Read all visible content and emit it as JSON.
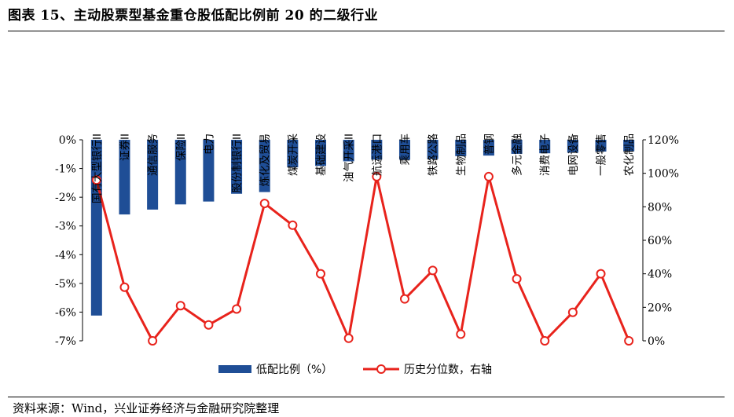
{
  "title": "图表 15、主动股票型基金重仓股低配比例前 20 的二级行业",
  "source": "资料来源：Wind，兴业证券经济与金融研究院整理",
  "chart_data": {
    "type": "bar+line",
    "categories": [
      "国有大型银行II",
      "证券II",
      "通信服务",
      "保险II",
      "电力",
      "股份制银行II",
      "炼化及贸易",
      "煤炭开采",
      "基础建设",
      "油气开采II",
      "航运港口",
      "乘用车",
      "铁路公路",
      "生物制品",
      "普钢",
      "多元金融",
      "消费电子",
      "电网设备",
      "一般零售",
      "农化制品"
    ],
    "series": [
      {
        "name": "低配比例（%）",
        "type": "bar",
        "axis": "left",
        "color": "#1f4e96",
        "values": [
          -6.12,
          -2.6,
          -2.43,
          -2.25,
          -2.15,
          -1.88,
          -1.82,
          -0.96,
          -0.91,
          -0.75,
          -0.69,
          -0.69,
          -0.67,
          -0.57,
          -0.55,
          -0.49,
          -0.47,
          -0.45,
          -0.41,
          -0.4
        ]
      },
      {
        "name": "历史分位数，右轴",
        "type": "line",
        "axis": "right",
        "color": "#e8231c",
        "values": [
          96,
          32,
          0,
          21,
          9.5,
          19,
          82,
          69,
          40,
          1.5,
          98,
          25,
          42,
          4,
          98,
          37,
          0,
          17,
          40,
          0
        ]
      }
    ],
    "y_left": {
      "min": -7,
      "max": 0,
      "ticks": [
        "0%",
        "-1%",
        "-2%",
        "-3%",
        "-4%",
        "-5%",
        "-6%",
        "-7%"
      ]
    },
    "y_right": {
      "min": 0,
      "max": 120,
      "ticks": [
        "120%",
        "100%",
        "80%",
        "60%",
        "40%",
        "20%",
        "0%"
      ]
    },
    "legend_position": "bottom",
    "grid": false
  }
}
